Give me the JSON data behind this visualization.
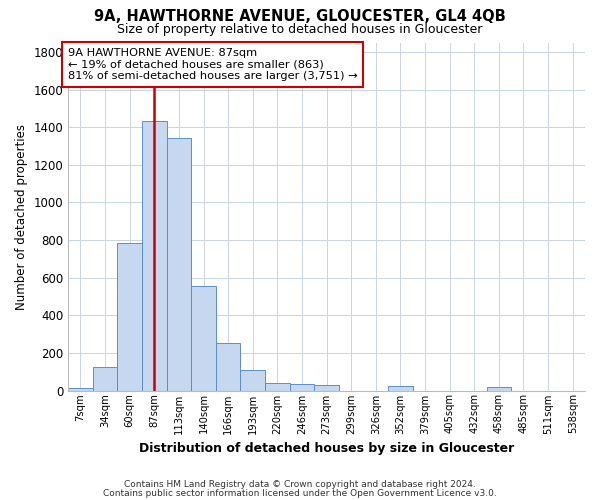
{
  "title": "9A, HAWTHORNE AVENUE, GLOUCESTER, GL4 4QB",
  "subtitle": "Size of property relative to detached houses in Gloucester",
  "xlabel": "Distribution of detached houses by size in Gloucester",
  "ylabel": "Number of detached properties",
  "bar_color": "#c5d8ef",
  "bar_edge_color": "#5b8fc9",
  "background_color": "#ffffff",
  "grid_color": "#c8d4e0",
  "categories": [
    "7sqm",
    "34sqm",
    "60sqm",
    "87sqm",
    "113sqm",
    "140sqm",
    "166sqm",
    "193sqm",
    "220sqm",
    "246sqm",
    "273sqm",
    "299sqm",
    "326sqm",
    "352sqm",
    "379sqm",
    "405sqm",
    "432sqm",
    "458sqm",
    "485sqm",
    "511sqm",
    "538sqm"
  ],
  "values": [
    15,
    125,
    785,
    1435,
    1340,
    555,
    250,
    110,
    38,
    32,
    30,
    0,
    0,
    22,
    0,
    0,
    0,
    18,
    0,
    0,
    0
  ],
  "vline_x_idx": 3,
  "vline_color": "#cc0000",
  "annotation_line1": "9A HAWTHORNE AVENUE: 87sqm",
  "annotation_line2": "← 19% of detached houses are smaller (863)",
  "annotation_line3": "81% of semi-detached houses are larger (3,751) →",
  "annotation_box_color": "#ffffff",
  "annotation_box_edge_color": "#cc0000",
  "ylim": [
    0,
    1850
  ],
  "yticks": [
    0,
    200,
    400,
    600,
    800,
    1000,
    1200,
    1400,
    1600,
    1800
  ],
  "footnote1": "Contains HM Land Registry data © Crown copyright and database right 2024.",
  "footnote2": "Contains public sector information licensed under the Open Government Licence v3.0."
}
